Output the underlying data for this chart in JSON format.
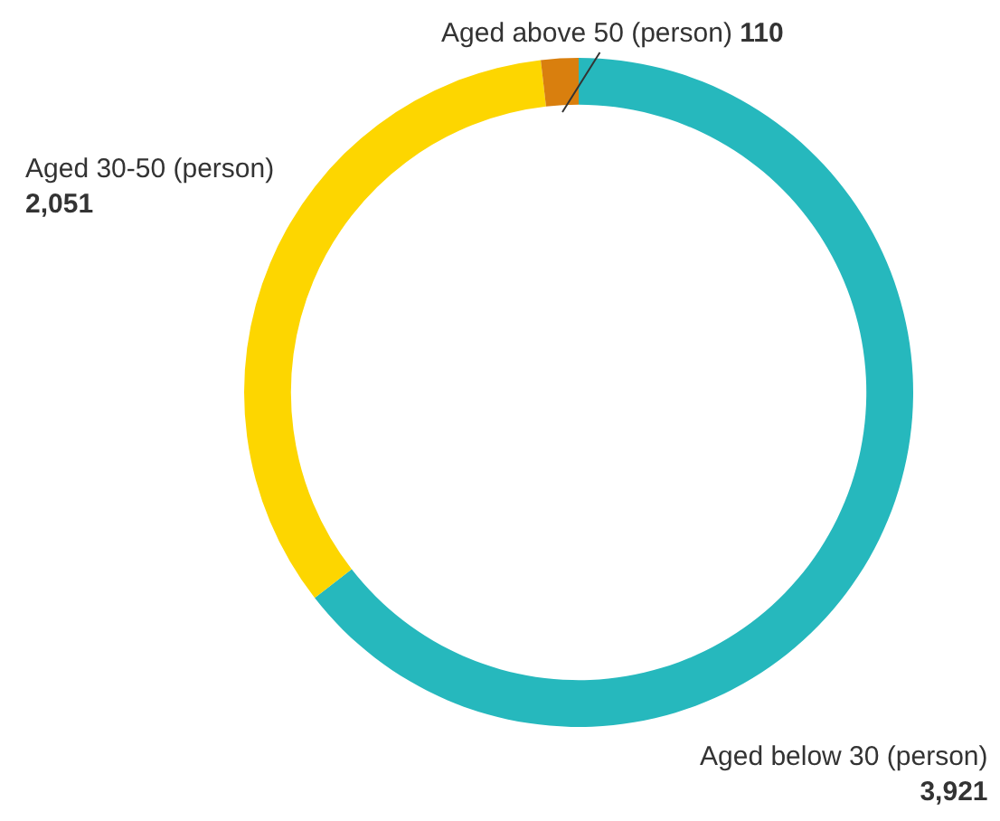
{
  "chart_data": {
    "type": "donut",
    "categories": [
      "Aged below 30 (person)",
      "Aged 30-50 (person)",
      "Aged above 50 (person)"
    ],
    "values": [
      3921,
      2051,
      110
    ],
    "colors": [
      "#26b8bd",
      "#fdd600",
      "#d97f0e"
    ],
    "value_labels": [
      "3,921",
      "2,051",
      "110"
    ]
  }
}
